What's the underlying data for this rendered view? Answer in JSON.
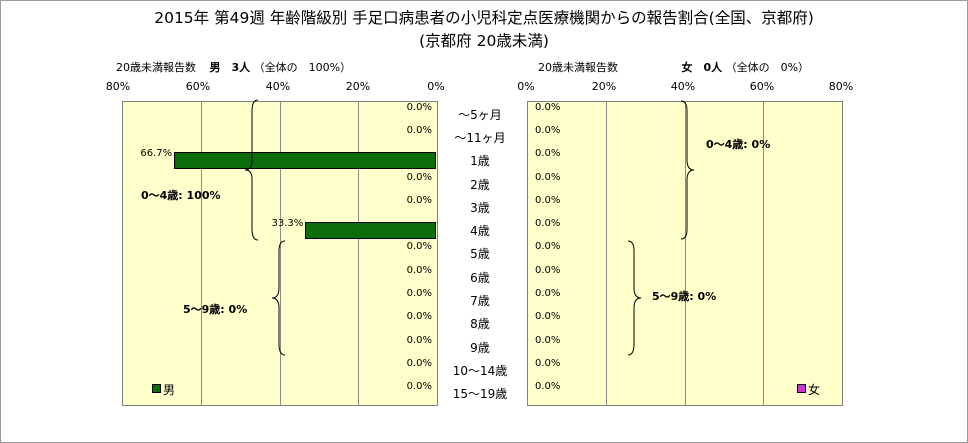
{
  "title_line1": "2015年 第49週 年齢階級別 手足口病患者の小児科定点医療機関からの報告割合(全国、京都府)",
  "title_line2": "(京都府 20歳未満)",
  "chart_data": {
    "type": "bar",
    "categories": [
      "～5ヶ月",
      "～11ヶ月",
      "1歳",
      "2歳",
      "3歳",
      "4歳",
      "5歳",
      "6歳",
      "7歳",
      "8歳",
      "9歳",
      "10～14歳",
      "15～19歳"
    ],
    "xlim": [
      0,
      80
    ],
    "tick_labels": [
      "80%",
      "60%",
      "40%",
      "20%",
      "0%"
    ],
    "tick_labels_right": [
      "0%",
      "20%",
      "40%",
      "60%",
      "80%"
    ],
    "grid": true,
    "series": [
      {
        "name": "男",
        "header": "20歳未満報告数",
        "count_label": "男　3人",
        "share_label": "（全体の　100%）",
        "color": "#0b6e0b",
        "values": [
          0,
          0,
          66.7,
          0,
          0,
          33.3,
          0,
          0,
          0,
          0,
          0,
          0,
          0
        ],
        "value_labels": [
          "0.0%",
          "0.0%",
          "66.7%",
          "0.0%",
          "0.0%",
          "33.3%",
          "0.0%",
          "0.0%",
          "0.0%",
          "0.0%",
          "0.0%",
          "0.0%",
          "0.0%"
        ],
        "group_labels": [
          "0～4歳: 100%",
          "5～9歳: 0%"
        ]
      },
      {
        "name": "女",
        "header": "20歳未満報告数",
        "count_label": "女　0人",
        "share_label": "（全体の　0%）",
        "color": "#cc33cc",
        "values": [
          0,
          0,
          0,
          0,
          0,
          0,
          0,
          0,
          0,
          0,
          0,
          0,
          0
        ],
        "value_labels": [
          "0.0%",
          "0.0%",
          "0.0%",
          "0.0%",
          "0.0%",
          "0.0%",
          "0.0%",
          "0.0%",
          "0.0%",
          "0.0%",
          "0.0%",
          "0.0%",
          "0.0%"
        ],
        "group_labels": [
          "0～4歳: 0%",
          "5～9歳: 0%"
        ]
      }
    ]
  }
}
